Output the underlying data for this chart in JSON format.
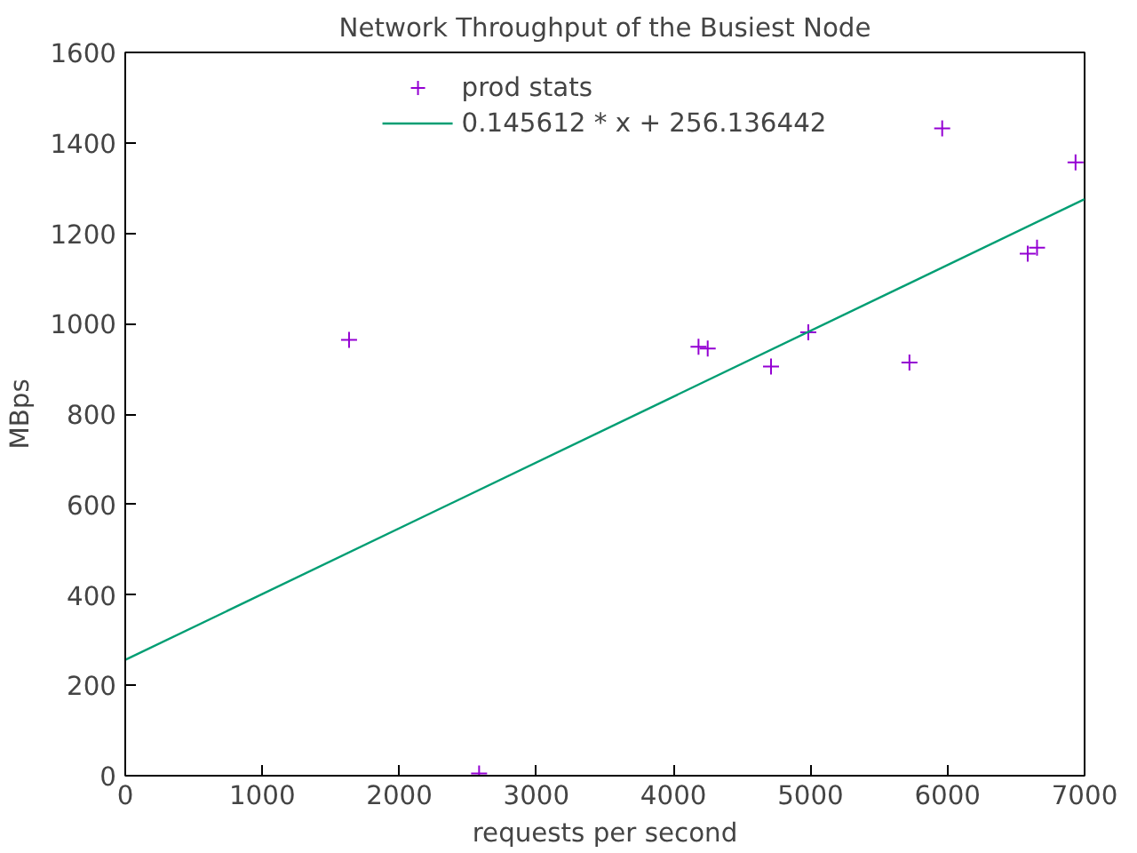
{
  "chart_data": {
    "type": "scatter",
    "title": "Network Throughput of the Busiest Node",
    "xlabel": "requests per second",
    "ylabel": "MBps",
    "xlim": [
      0,
      7000
    ],
    "xticks": [
      0,
      1000,
      2000,
      3000,
      4000,
      5000,
      6000,
      7000
    ],
    "ylim": [
      0,
      1600
    ],
    "yticks": [
      0,
      200,
      400,
      600,
      800,
      1000,
      1200,
      1400,
      1600
    ],
    "grid": false,
    "legend": "top",
    "marker": "cross",
    "series": [
      {
        "name": "prod stats",
        "color": "#9400d3",
        "x": [
          1633,
          2582,
          4183,
          4250,
          4712,
          4984,
          5722,
          5961,
          6585,
          6653,
          6934
        ],
        "values": [
          964,
          5,
          949,
          945,
          905,
          981,
          914,
          1432,
          1155,
          1168,
          1357
        ]
      },
      {
        "name": "0.145612 * x + 256.136442",
        "type": "line",
        "color": "#009e73",
        "marker": "none",
        "line_style": "solid",
        "x": [
          0,
          7000
        ],
        "values": [
          256.14,
          1275.42
        ]
      }
    ]
  }
}
